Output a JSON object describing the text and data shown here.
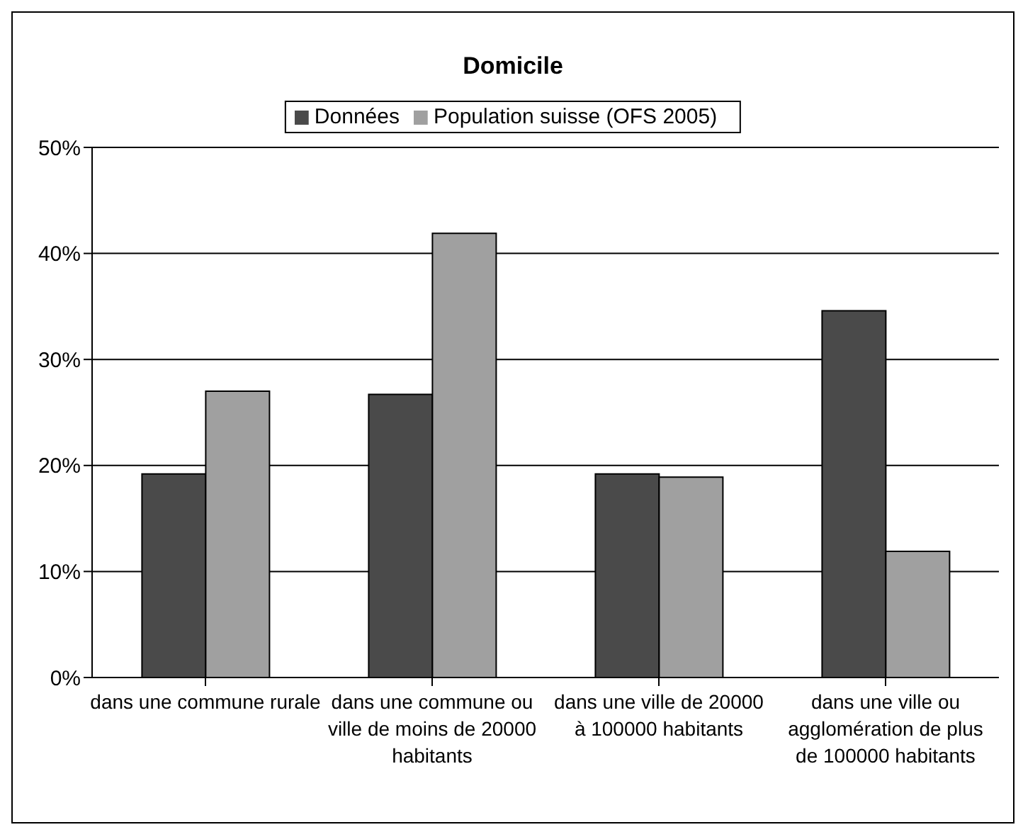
{
  "chart_data": {
    "type": "bar",
    "title": "Domicile",
    "categories": [
      "dans une commune rurale",
      "dans une commune ou ville de moins de 20000 habitants",
      "dans une ville de 20000 à 100000 habitants",
      "dans une ville ou agglomération de plus de 100000 habitants"
    ],
    "series": [
      {
        "name": "Données",
        "color": "#4a4a4a",
        "values": [
          19.2,
          26.7,
          19.2,
          34.6
        ]
      },
      {
        "name": "Population suisse (OFS 2005)",
        "color": "#a0a0a0",
        "values": [
          27.0,
          41.9,
          18.9,
          11.9
        ]
      }
    ],
    "ylim": [
      0,
      50
    ],
    "yticks": [
      {
        "value": 0,
        "label": "0%"
      },
      {
        "value": 10,
        "label": "10%"
      },
      {
        "value": 20,
        "label": "20%"
      },
      {
        "value": 30,
        "label": "30%"
      },
      {
        "value": 40,
        "label": "40%"
      },
      {
        "value": 50,
        "label": "50%"
      }
    ],
    "grid": "y",
    "legend": "top"
  }
}
